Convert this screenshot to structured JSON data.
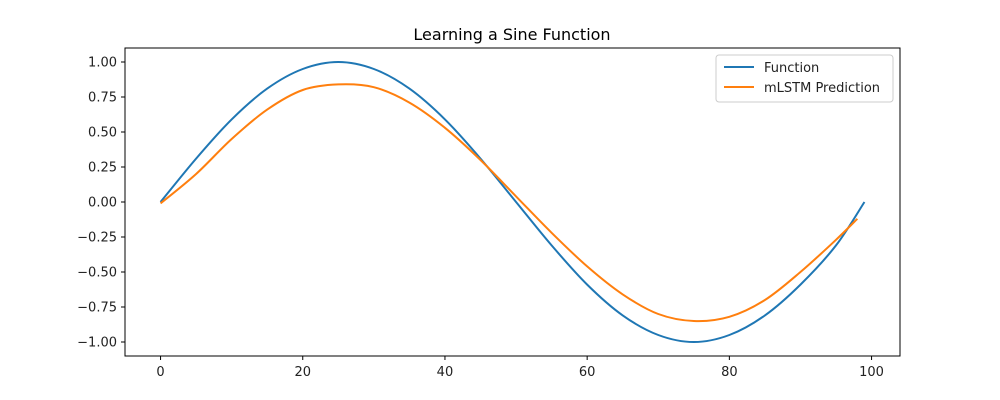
{
  "chart_data": {
    "type": "line",
    "title": "Learning a Sine Function",
    "xlabel": "",
    "ylabel": "",
    "xlim": [
      -5,
      104
    ],
    "ylim": [
      -1.1,
      1.1
    ],
    "x_ticks": [
      0,
      20,
      40,
      60,
      80,
      100
    ],
    "y_ticks": [
      1.0,
      0.75,
      0.5,
      0.25,
      0.0,
      -0.25,
      -0.5,
      -0.75,
      -1.0
    ],
    "x_tick_labels": [
      "0",
      "20",
      "40",
      "60",
      "80",
      "100"
    ],
    "y_tick_labels": [
      "1.00",
      "0.75",
      "0.50",
      "0.25",
      "0.00",
      "−0.25",
      "−0.50",
      "−0.75",
      "−1.00"
    ],
    "grid": false,
    "legend_position": "top-right",
    "series": [
      {
        "name": "Function",
        "color": "#1f77b4",
        "x": [
          0,
          5,
          10,
          15,
          20,
          25,
          30,
          35,
          40,
          45,
          50,
          55,
          60,
          65,
          70,
          75,
          80,
          85,
          90,
          95,
          99
        ],
        "y": [
          0.0,
          0.31,
          0.59,
          0.81,
          0.95,
          1.0,
          0.95,
          0.81,
          0.59,
          0.31,
          0.0,
          -0.31,
          -0.59,
          -0.81,
          -0.95,
          -1.0,
          -0.95,
          -0.81,
          -0.59,
          -0.31,
          0.0
        ]
      },
      {
        "name": "mLSTM Prediction",
        "color": "#ff7f0e",
        "x": [
          0,
          5,
          10,
          15,
          20,
          25,
          30,
          35,
          40,
          45,
          50,
          55,
          60,
          65,
          70,
          75,
          80,
          85,
          90,
          95,
          98
        ],
        "y": [
          -0.01,
          0.2,
          0.45,
          0.66,
          0.8,
          0.84,
          0.82,
          0.71,
          0.53,
          0.3,
          0.04,
          -0.22,
          -0.46,
          -0.66,
          -0.8,
          -0.85,
          -0.82,
          -0.7,
          -0.5,
          -0.27,
          -0.12
        ]
      }
    ]
  }
}
